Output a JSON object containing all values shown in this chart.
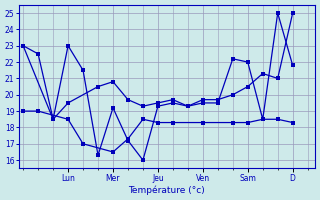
{
  "xlabel": "Température (°c)",
  "background_color": "#ceeaea",
  "grid_color": "#9999bb",
  "line_color": "#0000bb",
  "ylim": [
    15.5,
    25.5
  ],
  "yticks": [
    16,
    17,
    18,
    19,
    20,
    21,
    22,
    23,
    24,
    25
  ],
  "day_labels": [
    "Lun",
    "Mer",
    "Jeu",
    "Ven",
    "Sam",
    "D"
  ],
  "day_x": [
    3,
    6,
    9,
    12,
    15,
    18
  ],
  "xlim": [
    -0.3,
    19.5
  ],
  "n_x": 19,
  "line1_x": [
    0,
    1,
    2,
    3,
    4,
    5,
    6,
    7,
    8,
    9,
    10,
    11,
    12,
    13,
    14,
    15,
    16,
    17,
    18
  ],
  "line1_y": [
    23,
    22.5,
    18.5,
    23,
    21.5,
    16.3,
    19.2,
    17.2,
    16.0,
    19.3,
    19.5,
    19.3,
    19.5,
    19.5,
    22.2,
    22.0,
    18.5,
    25.0,
    21.8
  ],
  "line2_x": [
    0,
    1,
    3,
    4,
    6,
    7,
    8,
    9,
    10,
    12,
    14,
    15,
    16,
    17,
    18
  ],
  "line2_y": [
    19,
    19,
    18.5,
    17.0,
    16.5,
    17.3,
    18.5,
    18.3,
    18.3,
    18.3,
    18.3,
    18.3,
    18.5,
    18.5,
    18.3
  ],
  "line3_x": [
    0,
    2,
    3,
    5,
    6,
    7,
    8,
    9,
    10,
    11,
    12,
    13,
    14,
    15,
    16,
    17,
    18
  ],
  "line3_y": [
    23,
    18.5,
    19.5,
    20.5,
    20.8,
    19.7,
    19.3,
    19.5,
    19.7,
    19.3,
    19.7,
    19.7,
    20.0,
    20.5,
    21.3,
    21.0,
    25.0
  ]
}
